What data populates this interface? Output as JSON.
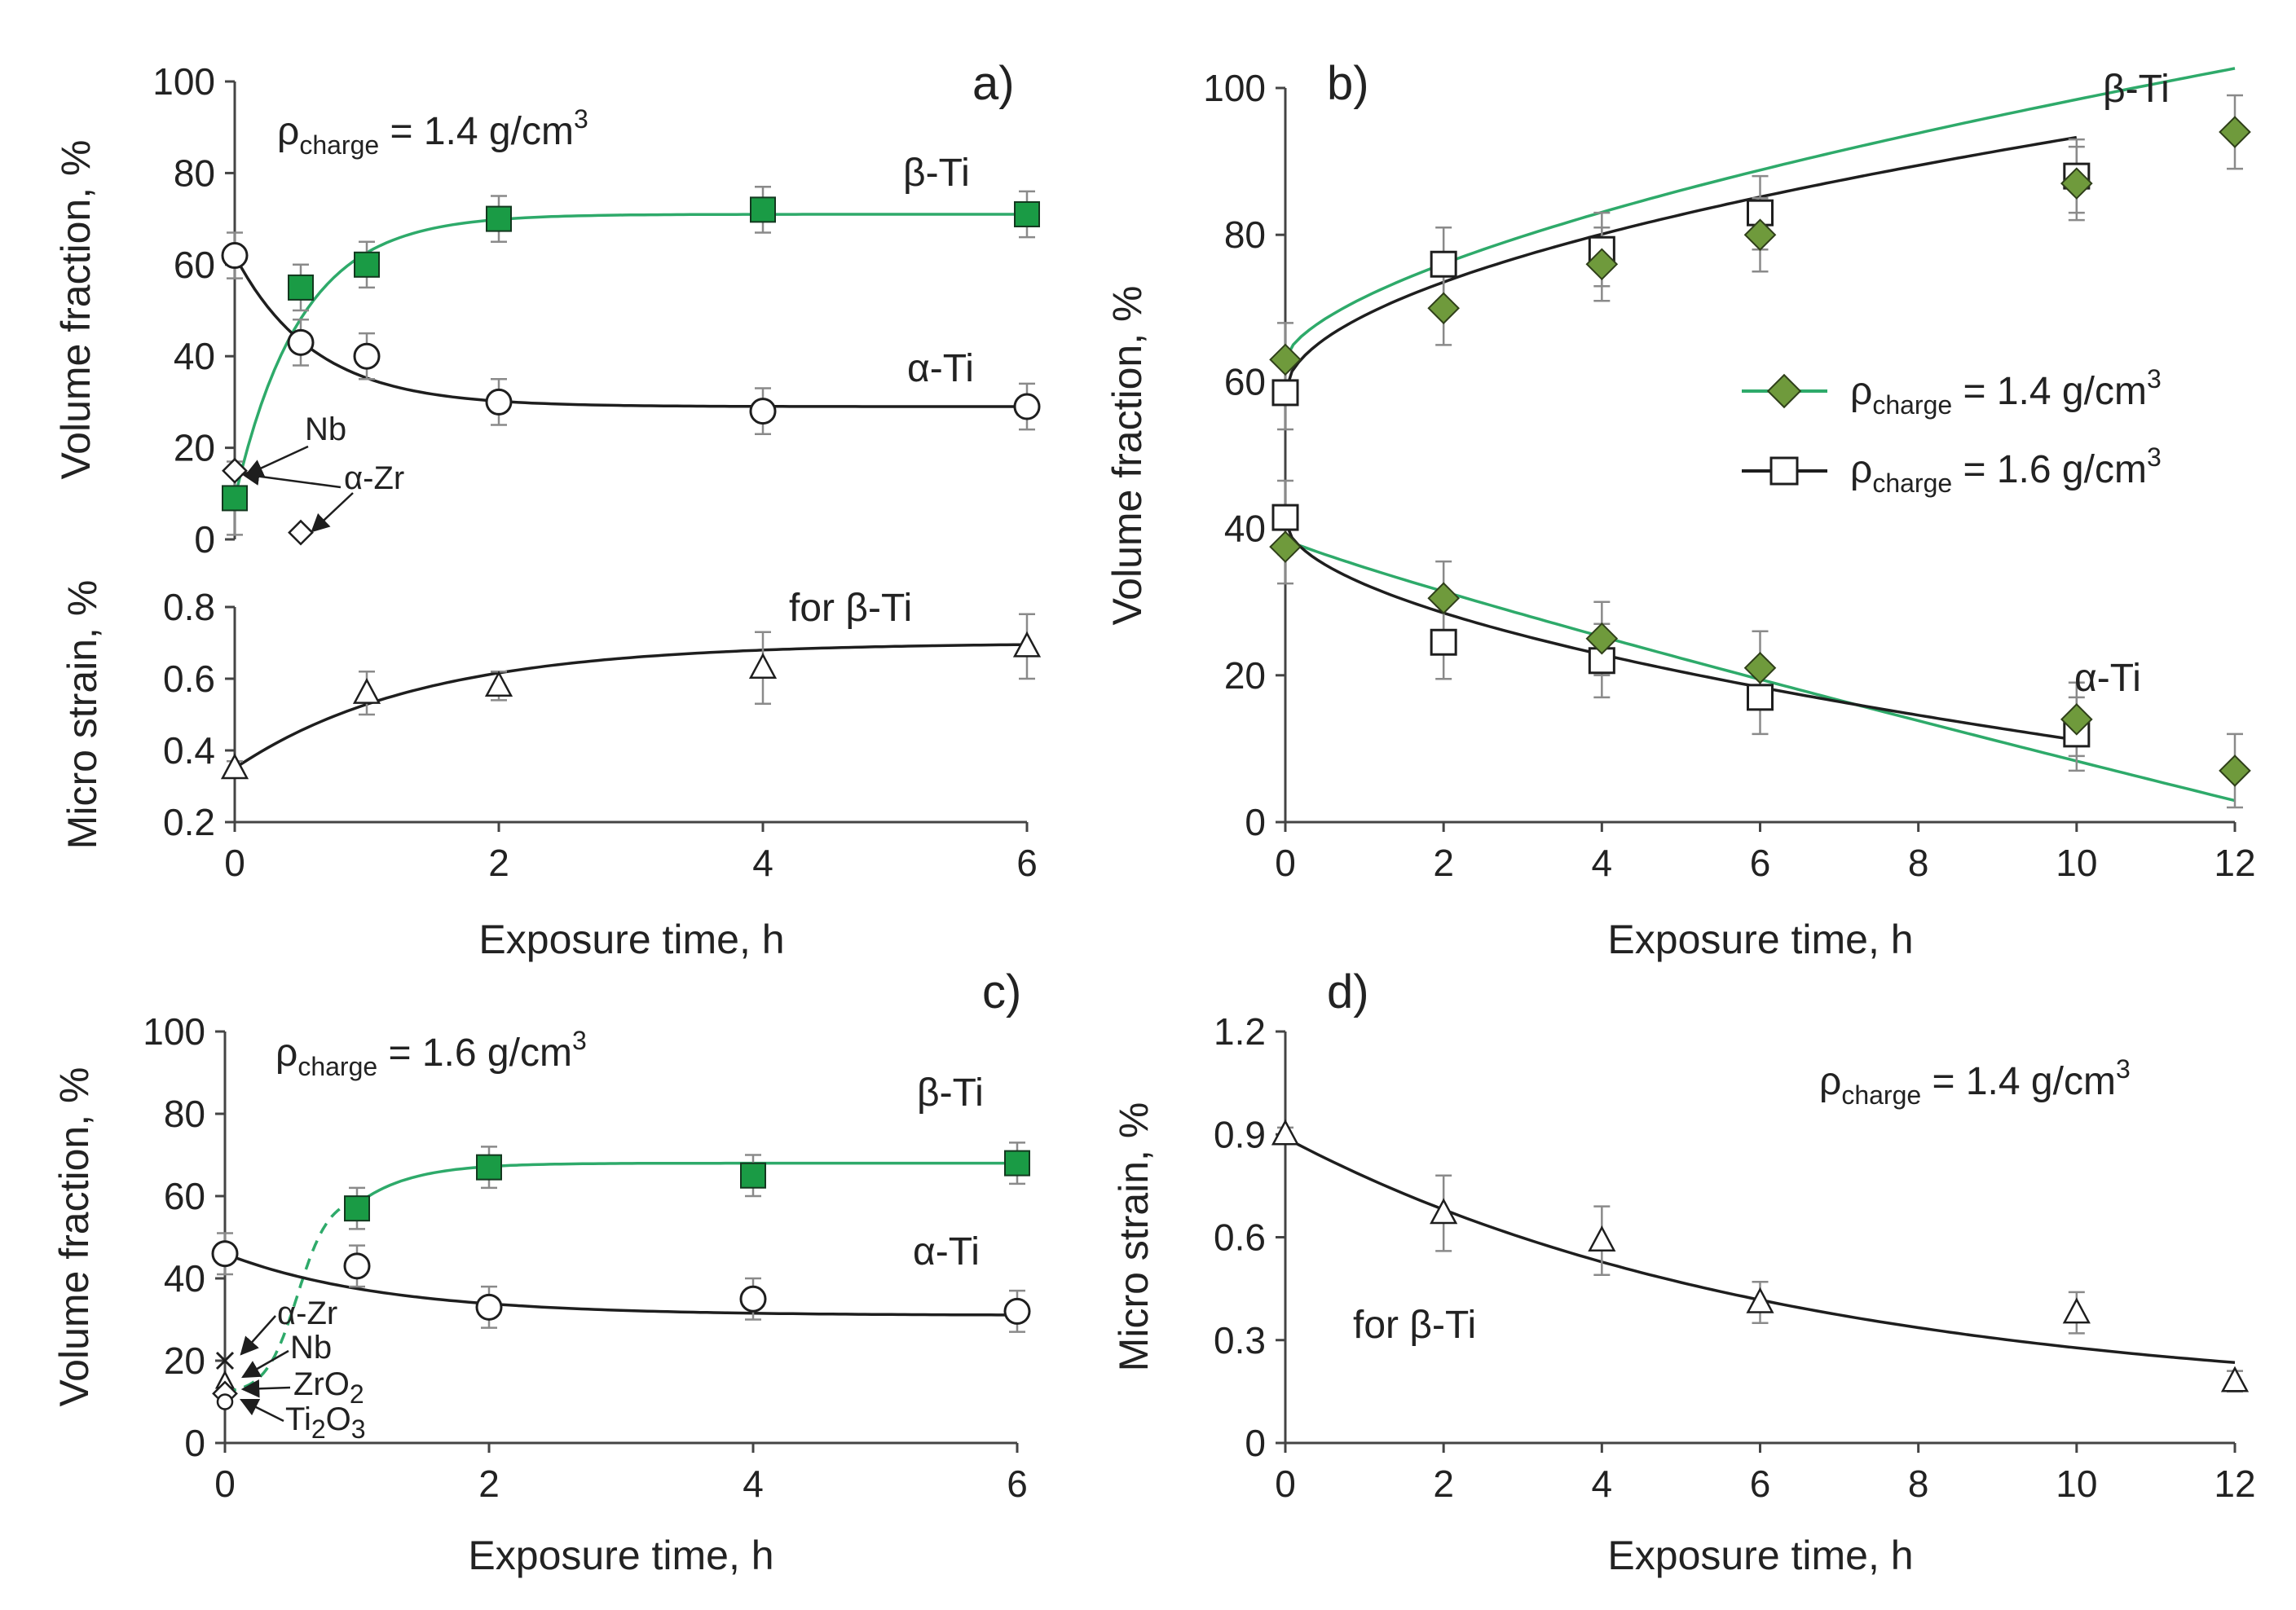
{
  "colors": {
    "green_line": "#2eaa6a",
    "green_square": "#1a9b45",
    "green_diamond": "#6f9a3c",
    "black": "#1e1e1e",
    "error_bar": "#8a8a8a"
  },
  "chart_data": [
    {
      "id": "a",
      "panel_label": "a)",
      "type": "scatter",
      "xlabel": "Exposure time, h",
      "x_ticks": [
        "0",
        "2",
        "4",
        "6"
      ],
      "xlim": [
        0,
        6
      ],
      "annotation": {
        "rho": "ρ",
        "sub": "charge",
        "text": " = 1.4 g/cm",
        "sup": "3"
      },
      "top": {
        "ylabel": "Volume fraction, %",
        "ylim": [
          0,
          100
        ],
        "y_ticks": [
          "0",
          "20",
          "40",
          "60",
          "80",
          "100"
        ],
        "series": [
          {
            "name": "β-Ti",
            "x": [
              0,
              0.5,
              1,
              2,
              4,
              6
            ],
            "values": [
              9,
              55,
              60,
              70,
              72,
              71
            ],
            "err": [
              8,
              5,
              5,
              5,
              5,
              5
            ]
          },
          {
            "name": "α-Ti",
            "x": [
              0,
              0.5,
              1,
              2,
              4,
              6
            ],
            "values": [
              62,
              43,
              40,
              30,
              28,
              29
            ],
            "err": [
              5,
              5,
              5,
              5,
              5,
              5
            ]
          },
          {
            "name": "Nb",
            "x": [
              0
            ],
            "values": [
              15
            ]
          },
          {
            "name": "α-Zr",
            "x": [
              0.5
            ],
            "values": [
              1.5
            ]
          }
        ],
        "labels": {
          "beta": "β-Ti",
          "alpha": "α-Ti",
          "nb": "Nb",
          "azr": "α-Zr"
        }
      },
      "bottom": {
        "ylabel": "Micro strain, %",
        "ylim": [
          0.2,
          0.8
        ],
        "y_ticks": [
          "0.2",
          "0.4",
          "0.6",
          "0.8"
        ],
        "series": [
          {
            "name": "for β-Ti",
            "x": [
              0,
              1,
              2,
              4,
              6
            ],
            "values": [
              0.35,
              0.56,
              0.58,
              0.63,
              0.69
            ],
            "err": [
              0.02,
              0.06,
              0.04,
              0.1,
              0.09
            ]
          }
        ],
        "label": "for β-Ti"
      }
    },
    {
      "id": "b",
      "panel_label": "b)",
      "type": "scatter",
      "xlabel": "Exposure time, h",
      "ylabel": "Volume fraction, %",
      "xlim": [
        0,
        12
      ],
      "ylim": [
        0,
        100
      ],
      "x_ticks": [
        "0",
        "2",
        "4",
        "6",
        "8",
        "10",
        "12"
      ],
      "y_ticks": [
        "0",
        "20",
        "40",
        "60",
        "80",
        "100"
      ],
      "series": [
        {
          "name": "β-Ti 1.4 g/cm3",
          "x": [
            0,
            2,
            4,
            6,
            10,
            12
          ],
          "values": [
            63,
            70,
            76,
            80,
            87,
            94
          ],
          "err": [
            5,
            5,
            5,
            5,
            5,
            5
          ]
        },
        {
          "name": "β-Ti 1.6 g/cm3",
          "x": [
            0,
            2,
            4,
            6,
            10
          ],
          "values": [
            58.5,
            76,
            78,
            83,
            88
          ],
          "err": [
            5,
            5,
            5,
            5,
            5
          ]
        },
        {
          "name": "α-Ti 1.4 g/cm3",
          "x": [
            0,
            2,
            4,
            6,
            10,
            12
          ],
          "values": [
            37.5,
            30.5,
            25,
            21,
            14,
            7
          ],
          "err": [
            5,
            5,
            5,
            5,
            5,
            5
          ]
        },
        {
          "name": "α-Ti 1.6 g/cm3",
          "x": [
            0,
            2,
            4,
            6,
            10
          ],
          "values": [
            41.5,
            24.5,
            22,
            17,
            12
          ],
          "err": [
            5,
            5,
            5,
            5,
            5
          ]
        }
      ],
      "labels": {
        "beta": "β-Ti",
        "alpha": "α-Ti"
      },
      "legend": [
        {
          "rho": "ρ",
          "sub": "charge",
          "text": " = 1.4 g/cm",
          "sup": "3"
        },
        {
          "rho": "ρ",
          "sub": "charge",
          "text": " = 1.6 g/cm",
          "sup": "3"
        }
      ]
    },
    {
      "id": "c",
      "panel_label": "c)",
      "type": "scatter",
      "xlabel": "Exposure time, h",
      "ylabel": "Volume fraction, %",
      "xlim": [
        0,
        6
      ],
      "ylim": [
        0,
        100
      ],
      "x_ticks": [
        "0",
        "2",
        "4",
        "6"
      ],
      "y_ticks": [
        "0",
        "20",
        "40",
        "60",
        "80",
        "100"
      ],
      "annotation": {
        "rho": "ρ",
        "sub": "charge",
        "text": " = 1.6 g/cm",
        "sup": "3"
      },
      "series": [
        {
          "name": "β-Ti",
          "x": [
            1,
            2,
            4,
            6
          ],
          "values": [
            57,
            67,
            65,
            68
          ],
          "err": [
            5,
            5,
            5,
            5
          ]
        },
        {
          "name": "α-Ti",
          "x": [
            0,
            1,
            2,
            4,
            6
          ],
          "values": [
            46,
            43,
            33,
            35,
            32
          ],
          "err": [
            5,
            5,
            5,
            5,
            5
          ]
        },
        {
          "name": "α-Zr",
          "x": [
            0
          ],
          "values": [
            20
          ]
        },
        {
          "name": "Nb",
          "x": [
            0
          ],
          "values": [
            15
          ]
        },
        {
          "name": "ZrO2",
          "x": [
            0
          ],
          "values": [
            12
          ]
        },
        {
          "name": "Ti2O3",
          "x": [
            0
          ],
          "values": [
            10
          ]
        }
      ],
      "labels": {
        "beta": "β-Ti",
        "alpha": "α-Ti",
        "azr": "α-Zr",
        "nb": "Nb",
        "zro2_main": "ZrO",
        "zro2_sub": "2",
        "ti2o3_a": "Ti",
        "ti2o3_b": "2",
        "ti2o3_c": "O",
        "ti2o3_d": "3"
      }
    },
    {
      "id": "d",
      "panel_label": "d)",
      "type": "scatter",
      "xlabel": "Exposure time, h",
      "ylabel": "Micro strain, %",
      "xlim": [
        0,
        12
      ],
      "ylim": [
        0,
        1.2
      ],
      "x_ticks": [
        "0",
        "2",
        "4",
        "6",
        "8",
        "10",
        "12"
      ],
      "y_ticks": [
        "0",
        "0.3",
        "0.6",
        "0.9",
        "1.2"
      ],
      "annotation": {
        "rho": "ρ",
        "sub": "charge",
        "text": " = 1.4 g/cm",
        "sup": "3"
      },
      "series": [
        {
          "name": "for β-Ti",
          "x": [
            0,
            2,
            4,
            6,
            10,
            12
          ],
          "values": [
            0.9,
            0.67,
            0.59,
            0.41,
            0.38,
            0.18
          ],
          "err": [
            0.02,
            0.11,
            0.1,
            0.06,
            0.06,
            0.03
          ]
        }
      ],
      "label": "for β-Ti"
    }
  ]
}
